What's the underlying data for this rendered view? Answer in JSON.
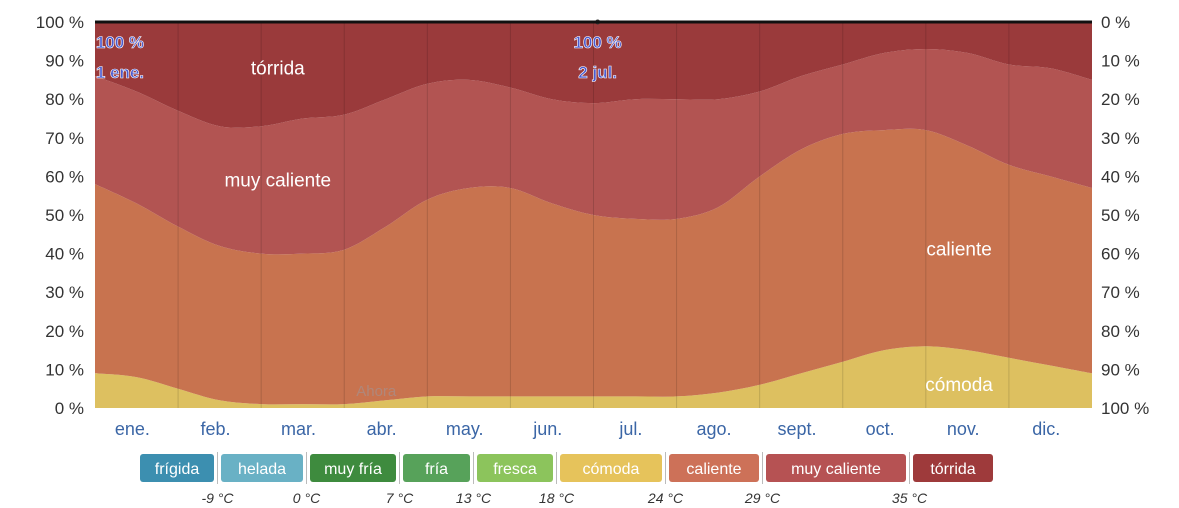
{
  "chart_data": {
    "type": "area",
    "stacking": "percent",
    "months": [
      "ene.",
      "feb.",
      "mar.",
      "abr.",
      "may.",
      "jun.",
      "jul.",
      "ago.",
      "sept.",
      "oct.",
      "nov.",
      "dic."
    ],
    "y_left_ticks": [
      "0 %",
      "10 %",
      "20 %",
      "30 %",
      "40 %",
      "50 %",
      "60 %",
      "70 %",
      "80 %",
      "90 %",
      "100 %"
    ],
    "y_right_ticks": [
      "100 %",
      "90 %",
      "80 %",
      "70 %",
      "60 %",
      "50 %",
      "40 %",
      "30 %",
      "20 %",
      "10 %",
      "0 %"
    ],
    "ylim": [
      0,
      100
    ],
    "x_domain": [
      0,
      12
    ],
    "grid": "vertical-month",
    "series": [
      {
        "name": "cómoda",
        "color": "#ddc060",
        "x": [
          0,
          0.5,
          1,
          1.5,
          2,
          2.5,
          3,
          3.5,
          4,
          4.5,
          5,
          5.5,
          6,
          6.5,
          7,
          7.5,
          8,
          8.5,
          9,
          9.5,
          10,
          10.5,
          11,
          11.5,
          12
        ],
        "y": [
          9,
          8,
          5,
          2,
          1,
          1,
          1,
          2,
          3,
          3,
          3,
          3,
          3,
          3,
          3,
          4,
          6,
          9,
          12,
          15,
          16,
          15,
          13,
          11,
          9
        ]
      },
      {
        "name": "caliente",
        "color": "#c8734f",
        "x": [
          0,
          0.5,
          1,
          1.5,
          2,
          2.5,
          3,
          3.5,
          4,
          4.5,
          5,
          5.5,
          6,
          6.5,
          7,
          7.5,
          8,
          8.5,
          9,
          9.5,
          10,
          10.5,
          11,
          11.5,
          12
        ],
        "y": [
          49,
          45,
          42,
          40,
          39,
          39,
          40,
          45,
          51,
          54,
          54,
          50,
          47,
          46,
          46,
          48,
          54,
          58,
          59,
          57,
          56,
          53,
          50,
          49,
          48
        ]
      },
      {
        "name": "muy caliente",
        "color": "#b25452",
        "x": [
          0,
          0.5,
          1,
          1.5,
          2,
          2.5,
          3,
          3.5,
          4,
          4.5,
          5,
          5.5,
          6,
          6.5,
          7,
          7.5,
          8,
          8.5,
          9,
          9.5,
          10,
          10.5,
          11,
          11.5,
          12
        ],
        "y": [
          28,
          29,
          30,
          31,
          33,
          35,
          35,
          33,
          30,
          28,
          26,
          27,
          29,
          31,
          31,
          28,
          22,
          19,
          18,
          20,
          21,
          24,
          26,
          28,
          28
        ]
      },
      {
        "name": "tórrida",
        "color": "#9a3a3b",
        "x": [
          0,
          0.5,
          1,
          1.5,
          2,
          2.5,
          3,
          3.5,
          4,
          4.5,
          5,
          5.5,
          6,
          6.5,
          7,
          7.5,
          8,
          8.5,
          9,
          9.5,
          10,
          10.5,
          11,
          11.5,
          12
        ],
        "y": [
          14,
          18,
          23,
          27,
          27,
          25,
          24,
          20,
          16,
          15,
          17,
          20,
          21,
          20,
          20,
          20,
          18,
          14,
          11,
          8,
          7,
          8,
          11,
          12,
          15
        ]
      }
    ],
    "region_labels": [
      {
        "text": "tórrida",
        "series": "tórrida",
        "x": 2.2,
        "y": 88
      },
      {
        "text": "muy caliente",
        "series": "muy caliente",
        "x": 2.2,
        "y": 59
      },
      {
        "text": "caliente",
        "series": "caliente",
        "x": 10.4,
        "y": 41
      },
      {
        "text": "cómoda",
        "series": "cómoda",
        "x": 10.4,
        "y": 6
      }
    ],
    "corner_labels": [
      {
        "line1": "100 %",
        "line2": "1 ene.",
        "x": 0.3,
        "y": 100
      },
      {
        "line1": "100 %",
        "line2": "2 jul.",
        "x": 6.05,
        "y": 100
      }
    ],
    "now_marker": {
      "text": "Ahora",
      "x": 3.0
    },
    "legend": [
      {
        "label": "frígida",
        "color": "#3c8fb0"
      },
      {
        "label": "helada",
        "color": "#69b1c5"
      },
      {
        "label": "muy fría",
        "color": "#3e8b3e"
      },
      {
        "label": "fría",
        "color": "#57a25a"
      },
      {
        "label": "fresca",
        "color": "#8cc45c"
      },
      {
        "label": "cómoda",
        "color": "#e6c35b"
      },
      {
        "label": "caliente",
        "color": "#cd7158"
      },
      {
        "label": "muy caliente",
        "color": "#b65253"
      },
      {
        "label": "tórrida",
        "color": "#9e3a3b"
      }
    ],
    "thresholds": [
      "-9 °C",
      "0 °C",
      "7 °C",
      "13 °C",
      "18 °C",
      "24 °C",
      "29 °C",
      "35 °C"
    ]
  }
}
